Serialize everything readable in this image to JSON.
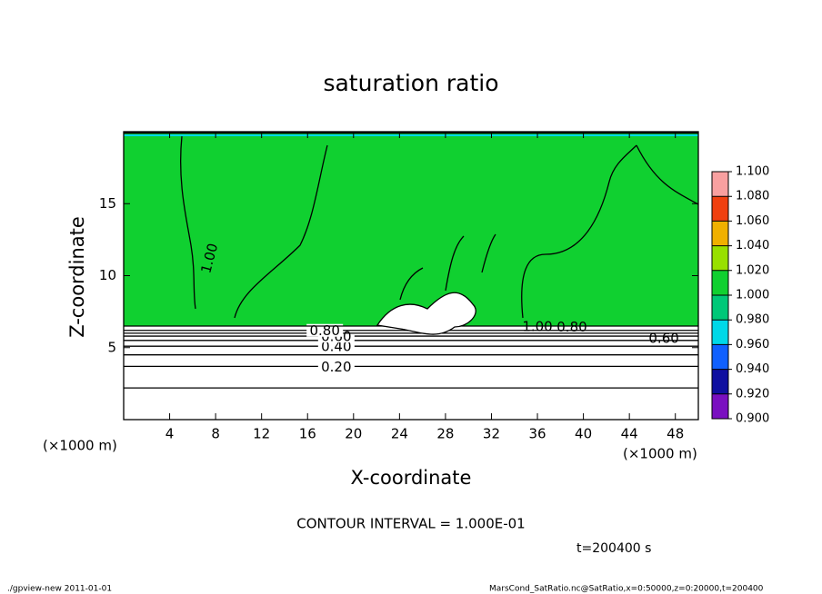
{
  "chart_data": {
    "type": "contour",
    "title": "saturation ratio",
    "x_label": "X-coordinate",
    "y_label": "Z-coordinate",
    "x_unit": "(×1000 m)",
    "y_unit": "(×1000 m)",
    "xlim": [
      0,
      50
    ],
    "ylim": [
      0,
      20
    ],
    "xticks": [
      4,
      8,
      12,
      16,
      20,
      24,
      28,
      32,
      36,
      40,
      44,
      48
    ],
    "yticks": [
      5,
      10,
      15
    ],
    "field_value": 1.0,
    "field_base_z": 6.5,
    "contours": [
      {
        "level": 0.1,
        "z": 2.2
      },
      {
        "level": 0.2,
        "z": 3.7,
        "label": "0.20",
        "label_x": 18.5
      },
      {
        "level": 0.3,
        "z": 4.5
      },
      {
        "level": 0.4,
        "z": 5.1,
        "label": "0.40",
        "label_x": 18.5
      },
      {
        "level": 0.5,
        "z": 5.5
      },
      {
        "level": 0.6,
        "z": 5.8,
        "label": "0.60",
        "label_x": 18.5
      },
      {
        "level": 0.7,
        "z": 6.0
      },
      {
        "level": 0.8,
        "z": 6.2,
        "label": "0.80",
        "label_x": 17.5
      },
      {
        "level": 1.0,
        "z": 6.5,
        "label": "1.00",
        "label_x": 36
      }
    ],
    "annotations": [
      {
        "text": "1.00",
        "x": 7.5,
        "z": 11.2
      },
      {
        "text": "0.80",
        "x": 39,
        "z": 6.4
      },
      {
        "text": "0.60",
        "x": 47,
        "z": 5.6
      }
    ],
    "colorbar": {
      "lim": [
        0.9,
        1.1
      ],
      "ticks": [
        {
          "value": 0.9,
          "label": "0.900"
        },
        {
          "value": 0.92,
          "label": "0.920"
        },
        {
          "value": 0.94,
          "label": "0.940"
        },
        {
          "value": 0.96,
          "label": "0.960"
        },
        {
          "value": 0.98,
          "label": "0.980"
        },
        {
          "value": 1.0,
          "label": "1.000"
        },
        {
          "value": 1.02,
          "label": "1.020"
        },
        {
          "value": 1.04,
          "label": "1.040"
        },
        {
          "value": 1.06,
          "label": "1.060"
        },
        {
          "value": 1.08,
          "label": "1.080"
        },
        {
          "value": 1.1,
          "label": "1.100"
        }
      ],
      "colors": [
        "#7a10c0",
        "#1010a0",
        "#1060ff",
        "#00d8e8",
        "#00c878",
        "#10d030",
        "#98e000",
        "#f0b000",
        "#f04010",
        "#f8a0a0"
      ]
    },
    "interval_text": "CONTOUR INTERVAL = 1.000E-01",
    "time_text": "t=200400 s",
    "footer_left": "./gpview-new   2011-01-01",
    "footer_right": "MarsCond_SatRatio.nc@SatRatio,x=0:50000,z=0:20000,t=200400"
  }
}
